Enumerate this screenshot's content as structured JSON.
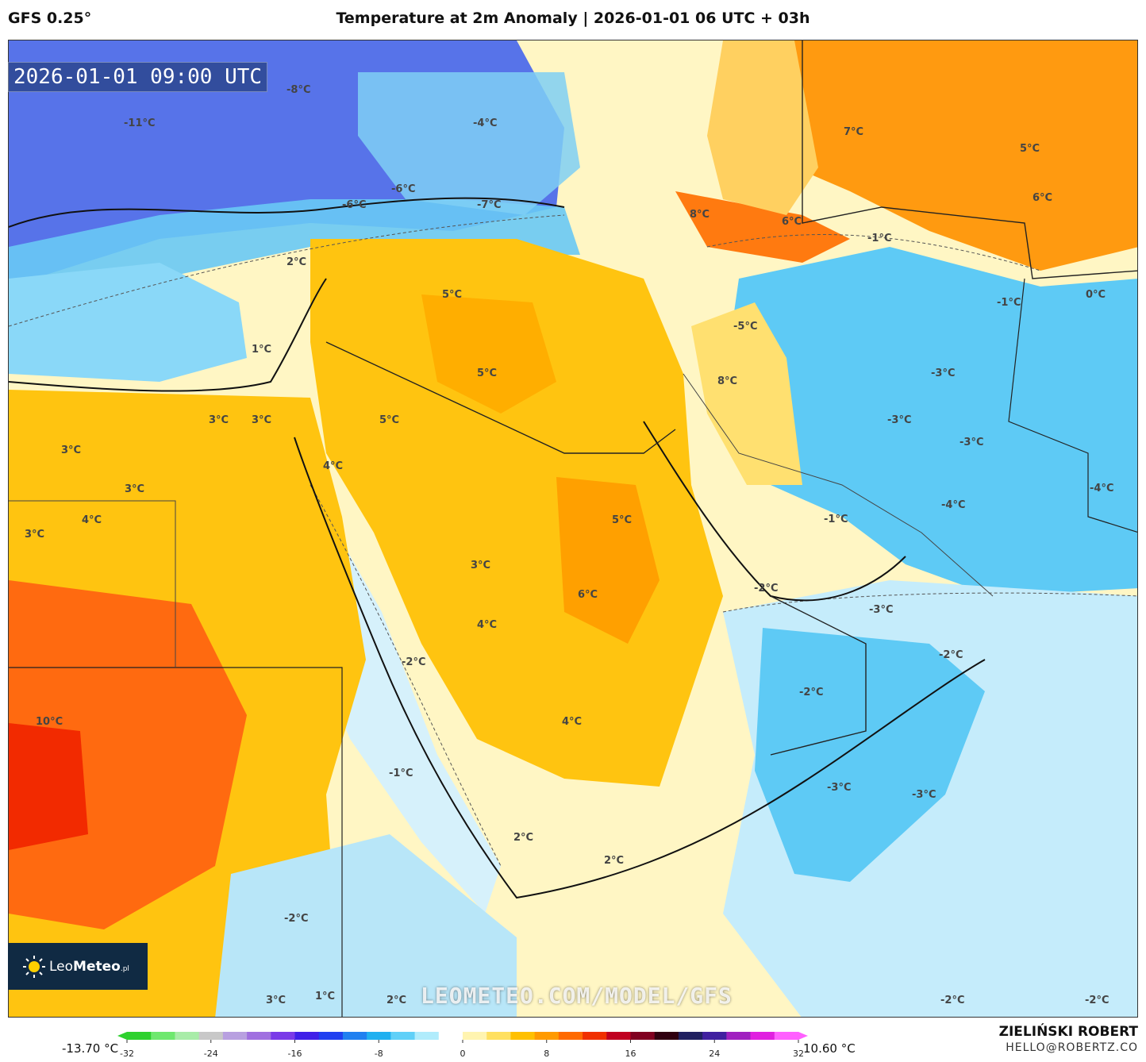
{
  "header": {
    "model": "GFS 0.25°",
    "title": "Temperature at 2m Anomaly | 2026-01-01 06 UTC + 03h"
  },
  "map": {
    "valid_time": "2026-01-01 09:00 UTC",
    "labels": [
      "-8°C",
      "-11°C",
      "-4°C",
      "-6°C",
      "-6°C",
      "-7°C",
      "7°C",
      "5°C",
      "6°C",
      "8°C",
      "6°C",
      "-1°C",
      "2°C",
      "5°C",
      "1°C",
      "-5°C",
      "-1°C",
      "0°C",
      "5°C",
      "8°C",
      "-3°C",
      "3°C",
      "3°C",
      "3°C",
      "5°C",
      "-3°C",
      "-3°C",
      "3°C",
      "4°C",
      "3°C",
      "-4°C",
      "-4°C",
      "4°C",
      "-1°C",
      "5°C",
      "3°C",
      "-2°C",
      "6°C",
      "-3°C",
      "4°C",
      "-2°C",
      "-2°C",
      "-2°C",
      "10°C",
      "4°C",
      "-1°C",
      "-3°C",
      "-3°C",
      "2°C",
      "2°C",
      "-2°C",
      "3°C",
      "1°C",
      "2°C",
      "-2°C",
      "-2°C"
    ],
    "watermark": "LEOMETEO.COM/MODEL/GFS"
  },
  "logo": {
    "brand_light": "Leo",
    "brand_bold": "Meteo",
    "suffix": ".pl"
  },
  "colorbar": {
    "min_label": "-13.70 °C",
    "max_label": "10.60 °C",
    "ticks": [
      "-32",
      "-24",
      "-16",
      "-8",
      "0",
      "8",
      "16",
      "24",
      "32"
    ],
    "colors": [
      "#2ed12e",
      "#6ee86e",
      "#a8eca8",
      "#c8c8c8",
      "#b8a0e0",
      "#a070e0",
      "#7a3ae8",
      "#4020e8",
      "#2040f0",
      "#2080f0",
      "#20b0f0",
      "#60d0f8",
      "#b0ecfc",
      "#ffffff",
      "#fff4b0",
      "#ffe060",
      "#ffc000",
      "#ff9a00",
      "#ff6a00",
      "#f03000",
      "#c00020",
      "#800020",
      "#300010",
      "#202060",
      "#4020a0",
      "#a020c0",
      "#e020e0",
      "#ff60ff"
    ]
  },
  "author": {
    "name": "ZIELIŃSKI ROBERT",
    "email": "HELLO@ROBERTZ.CO"
  }
}
